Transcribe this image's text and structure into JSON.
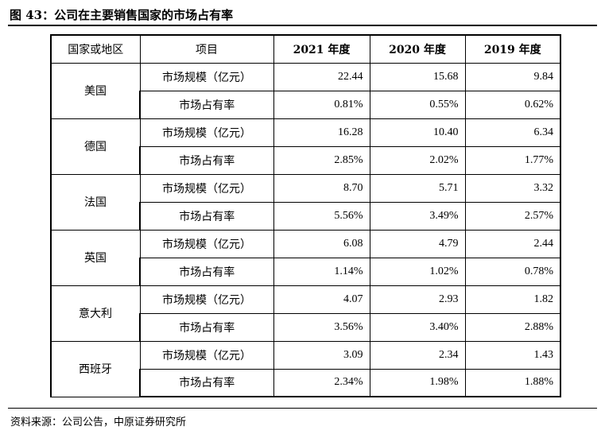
{
  "title": "图 43：公司在主要销售国家的市场占有率",
  "table": {
    "headers": {
      "region": "国家或地区",
      "item": "项目",
      "y2021": "2021 年度",
      "y2020": "2020 年度",
      "y2019": "2019 年度"
    },
    "rows": [
      {
        "region": "美国",
        "size_label": "市场规模（亿元）",
        "size": [
          "22.44",
          "15.68",
          "9.84"
        ],
        "share_label": "市场占有率",
        "share": [
          "0.81%",
          "0.55%",
          "0.62%"
        ]
      },
      {
        "region": "德国",
        "size_label": "市场规模（亿元）",
        "size": [
          "16.28",
          "10.40",
          "6.34"
        ],
        "share_label": "市场占有率",
        "share": [
          "2.85%",
          "2.02%",
          "1.77%"
        ]
      },
      {
        "region": "法国",
        "size_label": "市场规模（亿元）",
        "size": [
          "8.70",
          "5.71",
          "3.32"
        ],
        "share_label": "市场占有率",
        "share": [
          "5.56%",
          "3.49%",
          "2.57%"
        ]
      },
      {
        "region": "英国",
        "size_label": "市场规模（亿元）",
        "size": [
          "6.08",
          "4.79",
          "2.44"
        ],
        "share_label": "市场占有率",
        "share": [
          "1.14%",
          "1.02%",
          "0.78%"
        ]
      },
      {
        "region": "意大利",
        "size_label": "市场规模（亿元）",
        "size": [
          "4.07",
          "2.93",
          "1.82"
        ],
        "share_label": "市场占有率",
        "share": [
          "3.56%",
          "3.40%",
          "2.88%"
        ]
      },
      {
        "region": "西班牙",
        "size_label": "市场规模（亿元）",
        "size": [
          "3.09",
          "2.34",
          "1.43"
        ],
        "share_label": "市场占有率",
        "share": [
          "2.34%",
          "1.98%",
          "1.88%"
        ]
      }
    ]
  },
  "source": "资料来源：公司公告，中原证券研究所"
}
